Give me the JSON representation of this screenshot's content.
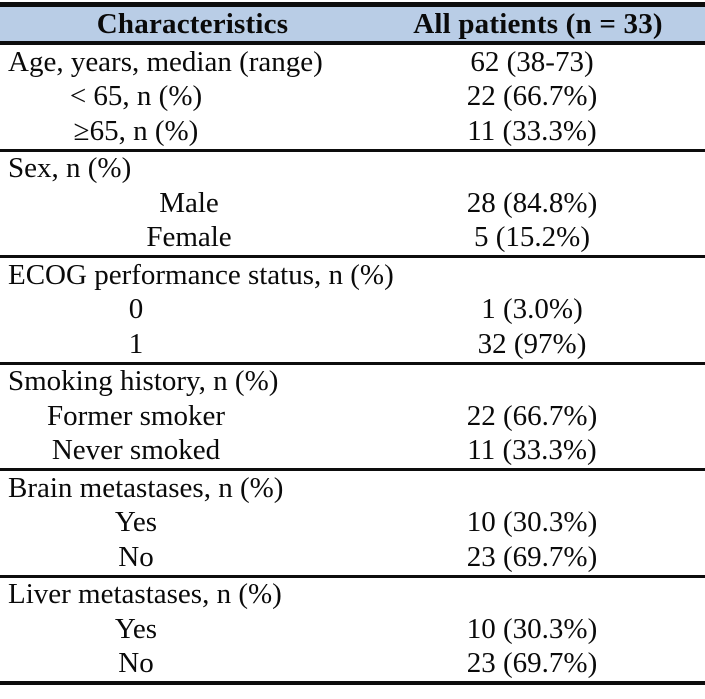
{
  "table": {
    "header": {
      "col1": "Characteristics",
      "col2": "All patients (n = 33)"
    },
    "rows": [
      {
        "label": "Age, years, median (range)",
        "value": "62 (38-73)",
        "align": "lead",
        "section_start": false
      },
      {
        "label": "< 65, n (%)",
        "value": "22 (66.7%)",
        "align": "subA",
        "section_start": false
      },
      {
        "label": "≥65, n (%)",
        "value": "11 (33.3%)",
        "align": "subA",
        "section_start": false
      },
      {
        "label": "Sex, n (%)",
        "value": "",
        "align": "lead",
        "section_start": true
      },
      {
        "label": "Male",
        "value": "28 (84.8%)",
        "align": "subB",
        "section_start": false
      },
      {
        "label": "Female",
        "value": "5 (15.2%)",
        "align": "subB",
        "section_start": false
      },
      {
        "label": "ECOG performance status, n (%)",
        "value": "",
        "align": "lead",
        "section_start": true
      },
      {
        "label": "0",
        "value": "1 (3.0%)",
        "align": "subA",
        "section_start": false
      },
      {
        "label": "1",
        "value": "32 (97%)",
        "align": "subA",
        "section_start": false
      },
      {
        "label": "Smoking history, n (%)",
        "value": "",
        "align": "lead",
        "section_start": true
      },
      {
        "label": "Former smoker",
        "value": "22 (66.7%)",
        "align": "subA",
        "section_start": false
      },
      {
        "label": "Never smoked",
        "value": "11 (33.3%)",
        "align": "subA",
        "section_start": false
      },
      {
        "label": "Brain metastases, n (%)",
        "value": "",
        "align": "lead",
        "section_start": true
      },
      {
        "label": "Yes",
        "value": "10 (30.3%)",
        "align": "subA",
        "section_start": false
      },
      {
        "label": "No",
        "value": "23 (69.7%)",
        "align": "subA",
        "section_start": false
      },
      {
        "label": "Liver metastases, n (%)",
        "value": "",
        "align": "lead",
        "section_start": true
      },
      {
        "label": "Yes",
        "value": "10 (30.3%)",
        "align": "subA",
        "section_start": false
      },
      {
        "label": "No",
        "value": "23 (69.7%)",
        "align": "subA",
        "section_start": false
      }
    ],
    "style": {
      "header_background": "#b9cde6",
      "rule_color": "#0d0d0d",
      "text_color": "#0a0a0a"
    }
  },
  "chart_data": {
    "type": "table",
    "title": "",
    "columns": [
      "Characteristics",
      "All patients (n = 33)"
    ],
    "sections": [
      {
        "header": "Age, years, median (range)",
        "header_value": "62 (38-73)",
        "items": [
          {
            "label": "< 65, n (%)",
            "value": "22 (66.7%)"
          },
          {
            "label": "≥65, n (%)",
            "value": "11 (33.3%)"
          }
        ]
      },
      {
        "header": "Sex, n (%)",
        "header_value": "",
        "items": [
          {
            "label": "Male",
            "value": "28 (84.8%)"
          },
          {
            "label": "Female",
            "value": "5 (15.2%)"
          }
        ]
      },
      {
        "header": "ECOG performance status, n (%)",
        "header_value": "",
        "items": [
          {
            "label": "0",
            "value": "1 (3.0%)"
          },
          {
            "label": "1",
            "value": "32 (97%)"
          }
        ]
      },
      {
        "header": "Smoking history, n (%)",
        "header_value": "",
        "items": [
          {
            "label": "Former smoker",
            "value": "22 (66.7%)"
          },
          {
            "label": "Never smoked",
            "value": "11 (33.3%)"
          }
        ]
      },
      {
        "header": "Brain metastases, n (%)",
        "header_value": "",
        "items": [
          {
            "label": "Yes",
            "value": "10 (30.3%)"
          },
          {
            "label": "No",
            "value": "23 (69.7%)"
          }
        ]
      },
      {
        "header": "Liver metastases, n (%)",
        "header_value": "",
        "items": [
          {
            "label": "Yes",
            "value": "10 (30.3%)"
          },
          {
            "label": "No",
            "value": "23 (69.7%)"
          }
        ]
      }
    ]
  }
}
